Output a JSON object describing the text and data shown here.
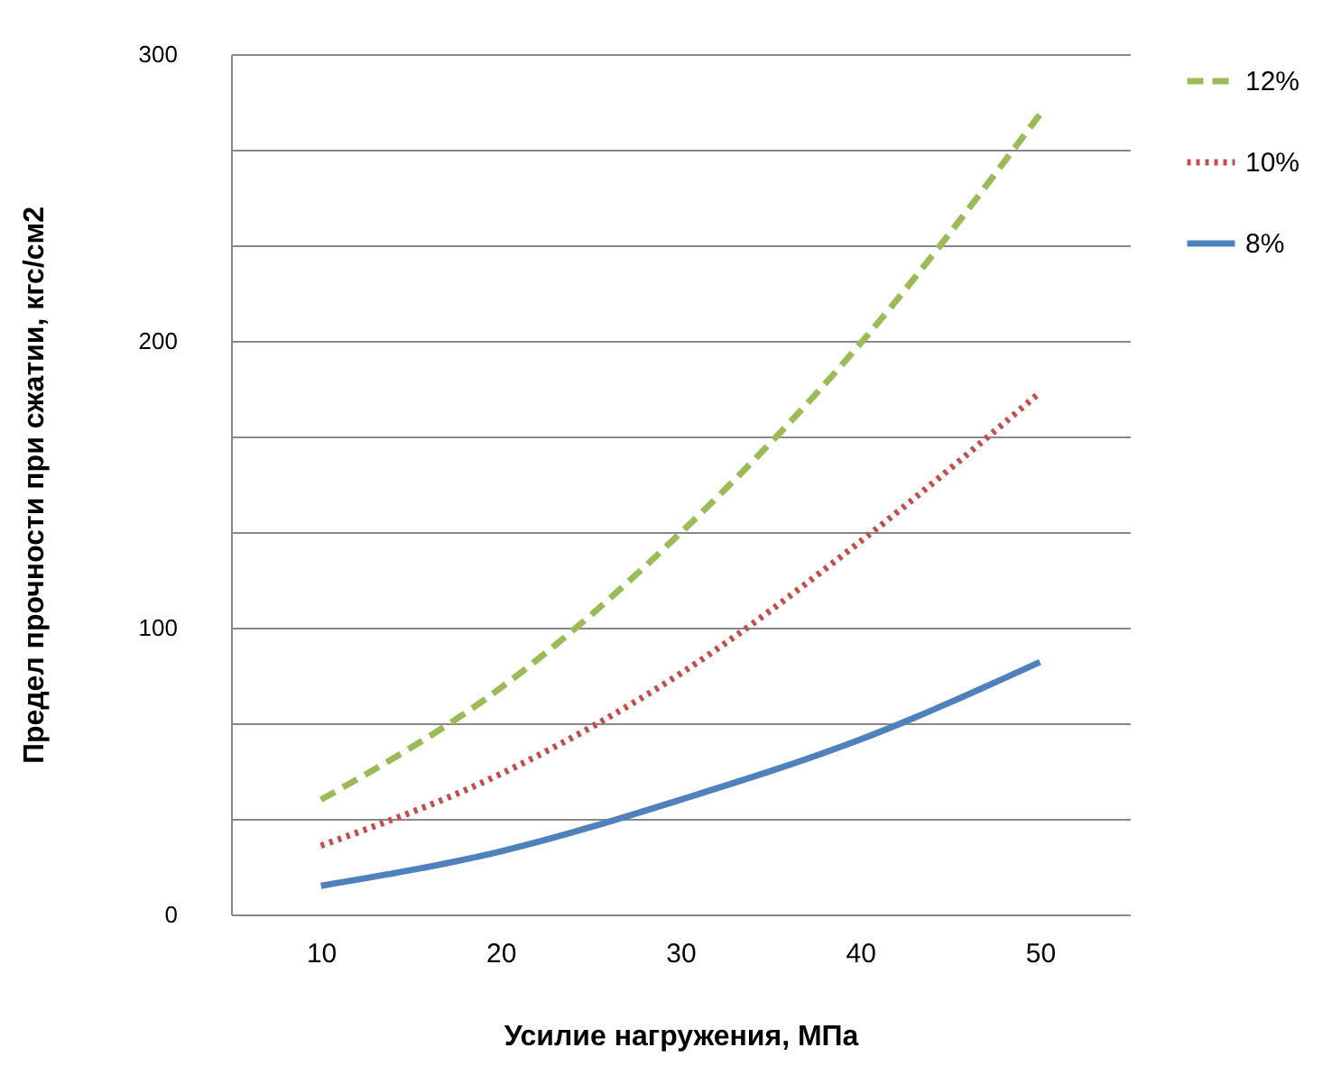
{
  "chart_data": {
    "type": "line",
    "xlabel": "Усилие нагружения,  МПа",
    "ylabel": "Предел прочности  при сжатии, кгс/см2",
    "categories": [
      "10",
      "20",
      "30",
      "40",
      "50"
    ],
    "series": [
      {
        "name": "12%",
        "color": "#9bbb59",
        "line_style": "dashed",
        "values": [
          40,
          79,
          133,
          199,
          279
        ]
      },
      {
        "name": "10%",
        "color": "#c0504d",
        "line_style": "dotted",
        "values": [
          24,
          49,
          84,
          130,
          182
        ]
      },
      {
        "name": "8%",
        "color": "#4f81bd",
        "line_style": "solid",
        "values": [
          10,
          22,
          40,
          61,
          88
        ]
      }
    ],
    "ylim": [
      0,
      300
    ],
    "yticks": [
      0,
      {
        "value": 33.33,
        "label": null
      },
      {
        "value": 66.67,
        "label": null
      },
      100,
      {
        "value": 133.33,
        "label": null
      },
      {
        "value": 166.67,
        "label": null
      },
      200,
      {
        "value": 233.33,
        "label": null
      },
      {
        "value": 266.67,
        "label": null
      },
      300
    ],
    "grid": "y",
    "legend": "right",
    "marker": "none"
  }
}
